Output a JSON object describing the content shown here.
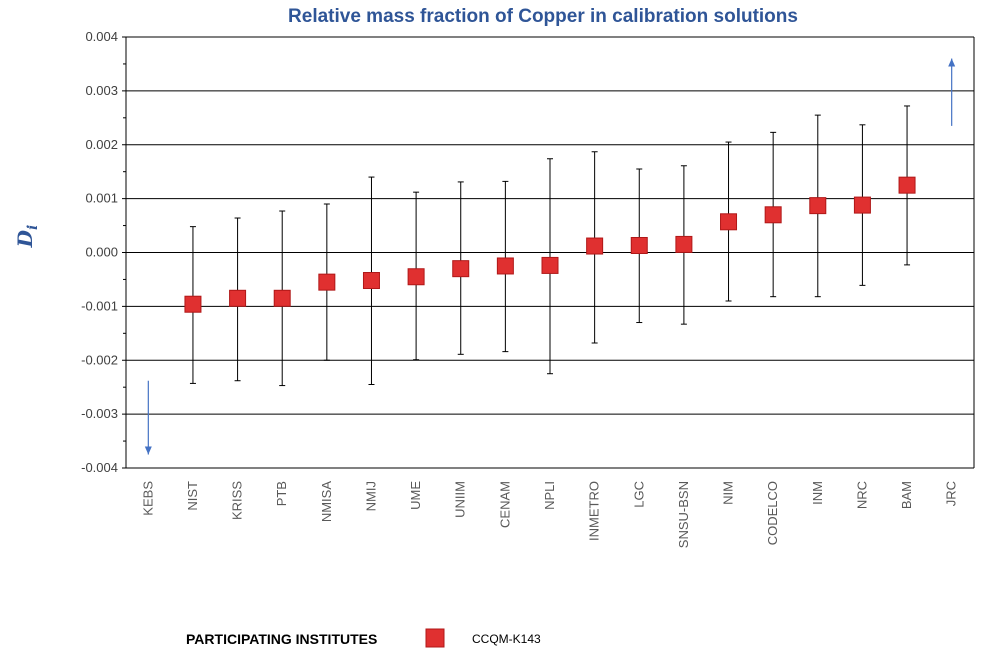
{
  "chart_data": {
    "type": "scatter",
    "title": "Relative mass fraction of Copper in calibration solutions",
    "ylabel": "D",
    "ylabel_subscript": "i",
    "xlabel": "",
    "ylim": [
      -0.004,
      0.004
    ],
    "yticks": [
      "0.004",
      "0.003",
      "0.002",
      "0.001",
      "0.000",
      "-0.001",
      "-0.002",
      "-0.003",
      "-0.004"
    ],
    "ytick_values": [
      0.004,
      0.003,
      0.002,
      0.001,
      0.0,
      -0.001,
      -0.002,
      -0.003,
      -0.004
    ],
    "grid": "horizontal",
    "categories": [
      "KEBS",
      "NIST",
      "KRISS",
      "PTB",
      "NMISA",
      "NMIJ",
      "UME",
      "UNIIM",
      "CENAM",
      "NPLI",
      "INMETRO",
      "LGC",
      "SNSU-BSN",
      "NIM",
      "CODELCO",
      "INM",
      "NRC",
      "BAM",
      "JRC"
    ],
    "series": [
      {
        "name": "CCQM-K143",
        "marker_color": "#e03030",
        "values": [
          null,
          -0.00096,
          -0.00085,
          -0.00085,
          -0.00055,
          -0.00052,
          -0.00045,
          -0.0003,
          -0.00025,
          -0.00024,
          0.00012,
          0.00013,
          0.00015,
          0.00057,
          0.0007,
          0.00087,
          0.00088,
          0.00125,
          null
        ],
        "upper": [
          null,
          0.00048,
          0.00064,
          0.00077,
          0.0009,
          0.0014,
          0.00112,
          0.00131,
          0.00132,
          0.00174,
          0.00187,
          0.00155,
          0.00161,
          0.00205,
          0.00223,
          0.00255,
          0.00237,
          0.00272,
          null
        ],
        "lower": [
          null,
          -0.00243,
          -0.00238,
          -0.00247,
          -0.002,
          -0.00245,
          -0.00199,
          -0.00189,
          -0.00184,
          -0.00225,
          -0.00168,
          -0.0013,
          -0.00133,
          -0.0009,
          -0.00082,
          -0.00082,
          -0.00061,
          -0.00023,
          null
        ]
      }
    ],
    "offscale": [
      {
        "category": "KEBS",
        "direction": "down",
        "from": -0.00238,
        "to": -0.00375
      },
      {
        "category": "JRC",
        "direction": "up",
        "from": 0.00235,
        "to": 0.0036
      }
    ],
    "arrow_color": "#4472c4"
  },
  "legend": {
    "title": "PARTICIPATING INSTITUTES",
    "entry": "CCQM-K143"
  }
}
